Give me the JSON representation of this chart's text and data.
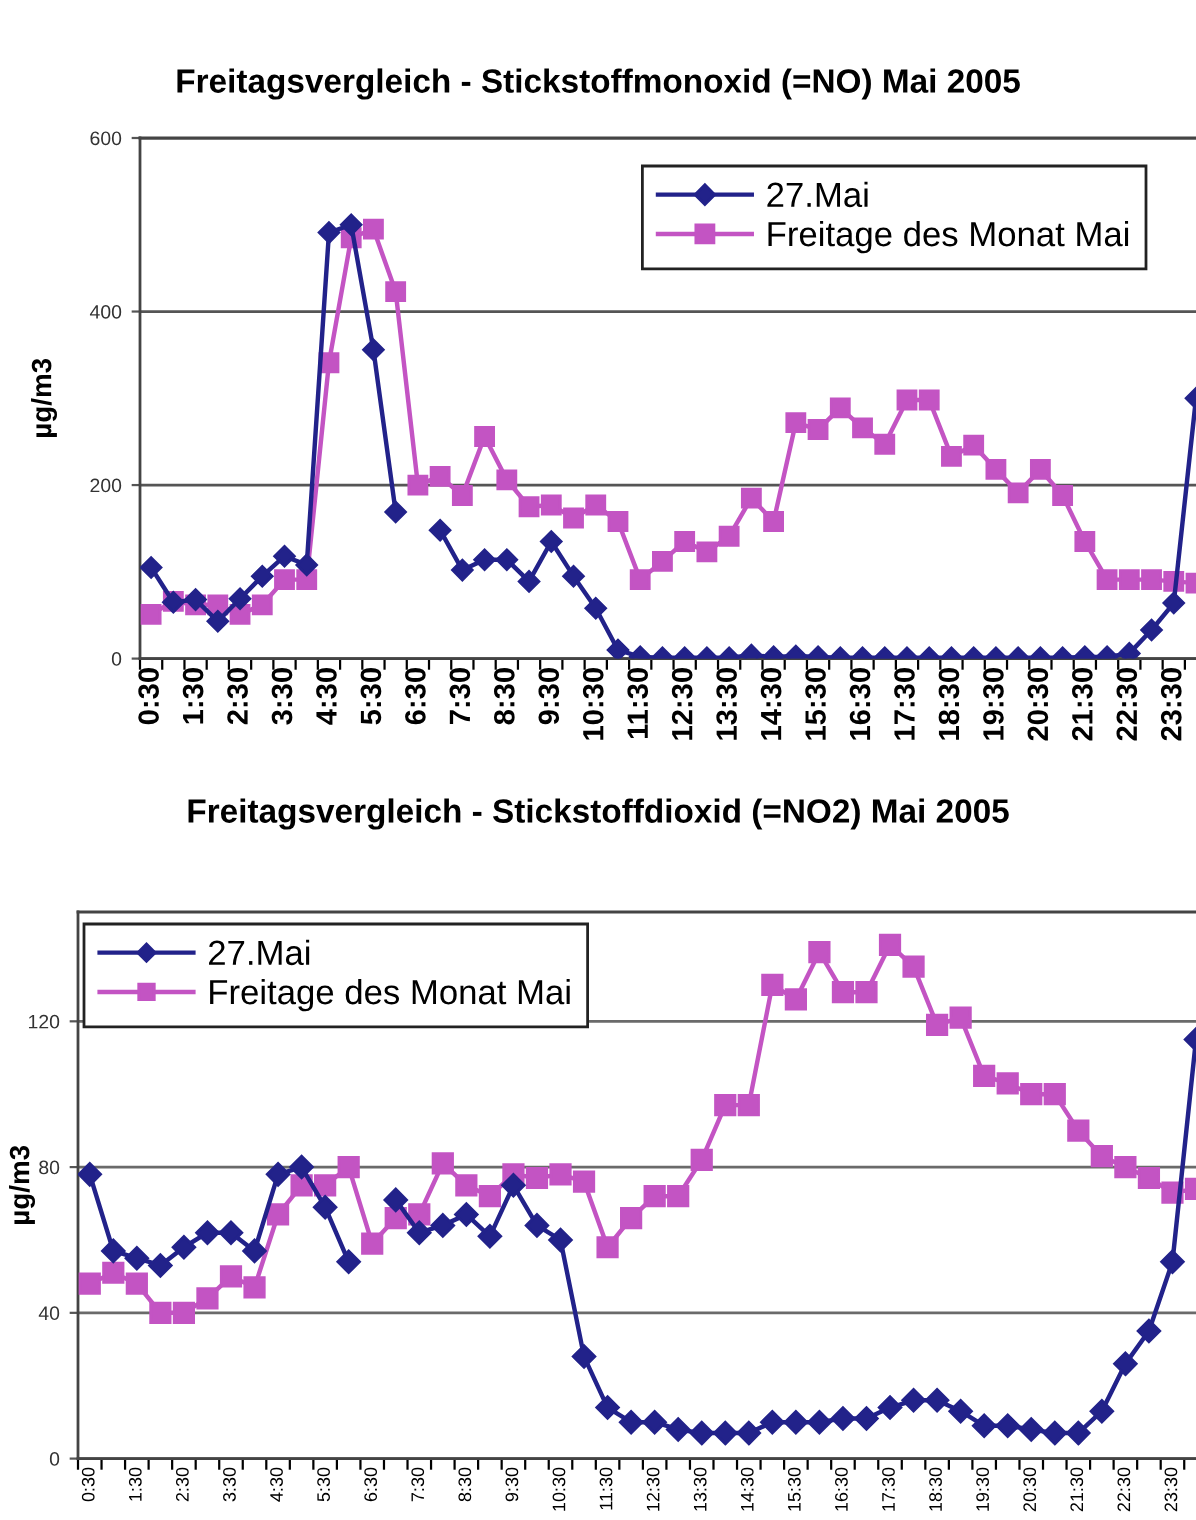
{
  "chart_data": [
    {
      "type": "line",
      "title": "Freitagsvergleich - Stickstoffmonoxid (=NO) Mai 2005",
      "ylabel": "µg/m3",
      "categories": [
        "0:30",
        null,
        "1:30",
        null,
        "2:30",
        null,
        "3:30",
        null,
        "4:30",
        null,
        "5:30",
        null,
        "6:30",
        null,
        "7:30",
        null,
        "8:30",
        null,
        "9:30",
        null,
        "10:30",
        null,
        "11:30",
        null,
        "12:30",
        null,
        "13:30",
        null,
        "14:30",
        null,
        "15:30",
        null,
        "16:30",
        null,
        "17:30",
        null,
        "18:30",
        null,
        "19:30",
        null,
        "20:30",
        null,
        "21:30",
        null,
        "22:30",
        null,
        "23:30",
        null
      ],
      "series": [
        {
          "name": "27.Mai",
          "color": "#22228a",
          "marker": "diamond",
          "values": [
            105,
            65,
            68,
            43,
            69,
            95,
            118,
            108,
            491,
            500,
            356,
            169,
            null,
            148,
            102,
            114,
            114,
            89,
            135,
            95,
            58,
            10,
            2,
            1,
            1,
            1,
            1,
            4,
            2,
            3,
            2,
            1,
            1,
            1,
            1,
            1,
            1,
            1,
            1,
            1,
            1,
            1,
            2,
            2,
            6,
            33,
            64,
            300
          ]
        },
        {
          "name": "Freitage des Monat Mai",
          "color": "#c354c3",
          "marker": "square",
          "values": [
            51,
            66,
            62,
            62,
            51,
            62,
            91,
            91,
            341,
            485,
            495,
            423,
            200,
            210,
            188,
            256,
            206,
            175,
            177,
            162,
            177,
            158,
            91,
            112,
            135,
            123,
            141,
            185,
            158,
            272,
            264,
            289,
            266,
            247,
            298,
            298,
            233,
            246,
            218,
            191,
            218,
            188,
            135,
            91,
            91,
            91,
            89,
            87
          ]
        }
      ],
      "ylim": [
        0,
        600
      ],
      "yticks": [
        0,
        200,
        400,
        600
      ],
      "grid": "y",
      "legend": "top right"
    },
    {
      "type": "line",
      "title": "Freitagsvergleich - Stickstoffdioxid (=NO2) Mai 2005",
      "ylabel": "µg/m3",
      "categories": [
        "0:30",
        null,
        "1:30",
        null,
        "2:30",
        null,
        "3:30",
        null,
        "4:30",
        null,
        "5:30",
        null,
        "6:30",
        null,
        "7:30",
        null,
        "8:30",
        null,
        "9:30",
        null,
        "10:30",
        null,
        "11:30",
        null,
        "12:30",
        null,
        "13:30",
        null,
        "14:30",
        null,
        "15:30",
        null,
        "16:30",
        null,
        "17:30",
        null,
        "18:30",
        null,
        "19:30",
        null,
        "20:30",
        null,
        "21:30",
        null,
        "22:30",
        null,
        "23:30",
        null
      ],
      "series": [
        {
          "name": "27.Mai",
          "color": "#22228a",
          "marker": "diamond",
          "values": [
            78,
            57,
            55,
            53,
            58,
            62,
            62,
            57,
            78,
            80,
            69,
            54,
            null,
            71,
            62,
            64,
            67,
            61,
            75,
            64,
            60,
            28,
            14,
            10,
            10,
            8,
            7,
            7,
            7,
            10,
            10,
            10,
            11,
            11,
            14,
            16,
            16,
            13,
            9,
            9,
            8,
            7,
            7,
            13,
            26,
            35,
            54,
            115
          ]
        },
        {
          "name": "Freitage des Monat Mai",
          "color": "#c354c3",
          "marker": "square",
          "values": [
            48,
            51,
            48,
            40,
            40,
            44,
            50,
            47,
            67,
            75,
            75,
            80,
            59,
            66,
            67,
            81,
            75,
            72,
            78,
            77,
            78,
            76,
            58,
            66,
            72,
            72,
            82,
            97,
            97,
            130,
            126,
            139,
            128,
            128,
            141,
            135,
            119,
            121,
            105,
            103,
            100,
            100,
            90,
            83,
            80,
            77,
            73,
            74
          ]
        }
      ],
      "ylim": [
        0,
        150
      ],
      "yticks": [
        0,
        40,
        80,
        120
      ],
      "grid": "y",
      "legend": "top left"
    }
  ]
}
